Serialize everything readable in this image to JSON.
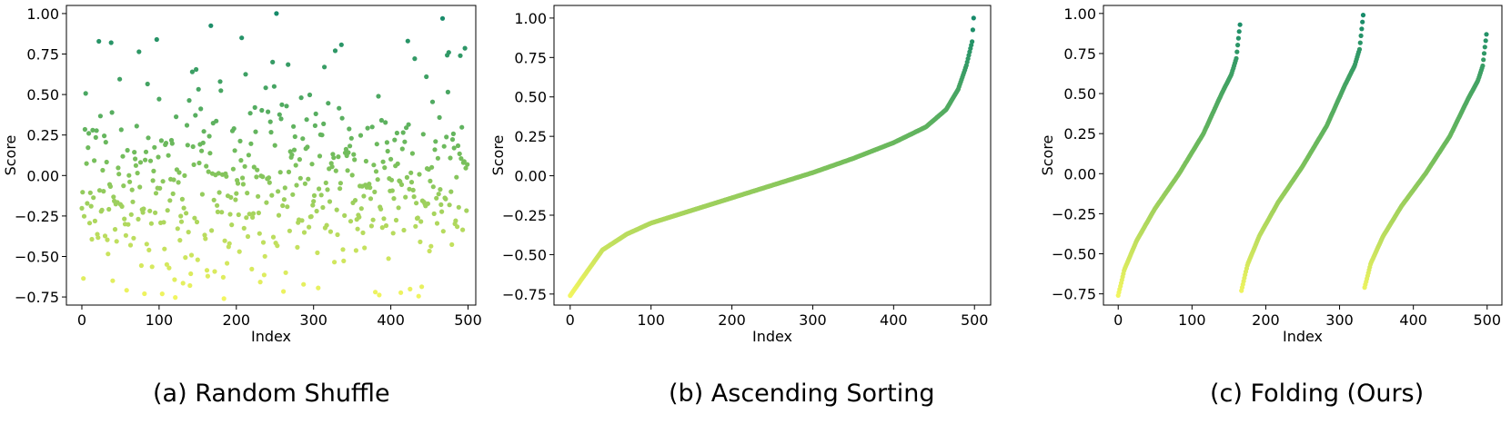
{
  "chart_data": [
    {
      "type": "scatter",
      "caption": "(a) Random Shuffle",
      "xlabel": "Index",
      "ylabel": "Score",
      "xlim": [
        -20,
        510
      ],
      "ylim": [
        -0.8,
        1.05
      ],
      "xticks": [
        0,
        100,
        200,
        300,
        400,
        500
      ],
      "xtick_labels": [
        "0",
        "100",
        "200",
        "300",
        "400",
        "500"
      ],
      "yticks": [
        -0.75,
        -0.5,
        -0.25,
        0.0,
        0.25,
        0.5,
        0.75,
        1.0
      ],
      "ytick_labels": [
        "−0.75",
        "−0.50",
        "−0.25",
        "0.00",
        "0.25",
        "0.50",
        "0.75",
        "1.00"
      ],
      "colormap": {
        "low": "#f2f55f",
        "mid": "#73bd5c",
        "high": "#168a6a"
      },
      "grid": false,
      "pattern": "500 points, x = 0..499, y values shuffled with no trend (same value distribution as panel b)",
      "x_count": 500,
      "visible_outliers": [
        {
          "x": 38,
          "y": 0.82
        },
        {
          "x": 97,
          "y": 0.84
        },
        {
          "x": 467,
          "y": 0.97
        },
        {
          "x": 422,
          "y": 0.83
        },
        {
          "x": 328,
          "y": 0.77
        },
        {
          "x": 475,
          "y": 0.76
        },
        {
          "x": 490,
          "y": 0.74
        },
        {
          "x": 81,
          "y": -0.73
        },
        {
          "x": 380,
          "y": -0.72
        }
      ]
    },
    {
      "type": "scatter",
      "caption": "(b) Ascending Sorting",
      "xlabel": "Index",
      "ylabel": "Score",
      "xlim": [
        -20,
        520
      ],
      "ylim": [
        -0.82,
        1.08
      ],
      "xticks": [
        0,
        100,
        200,
        300,
        400,
        500
      ],
      "xtick_labels": [
        "0",
        "100",
        "200",
        "300",
        "400",
        "500"
      ],
      "yticks": [
        -0.75,
        -0.5,
        -0.25,
        0.0,
        0.25,
        0.5,
        0.75,
        1.0
      ],
      "ytick_labels": [
        "−0.75",
        "−0.50",
        "−0.25",
        "0.00",
        "0.25",
        "0.50",
        "0.75",
        "1.00"
      ],
      "colormap": {
        "low": "#f2f55f",
        "mid": "#73bd5c",
        "high": "#168a6a"
      },
      "grid": false,
      "sorted_curve_anchors": {
        "x": [
          0,
          15,
          40,
          70,
          100,
          150,
          200,
          250,
          300,
          350,
          400,
          440,
          465,
          480,
          490,
          497,
          499
        ],
        "y": [
          -0.76,
          -0.65,
          -0.47,
          -0.37,
          -0.3,
          -0.22,
          -0.14,
          -0.06,
          0.02,
          0.11,
          0.21,
          0.31,
          0.42,
          0.55,
          0.7,
          0.85,
          1.0
        ]
      }
    },
    {
      "type": "scatter",
      "caption": "(c) Folding (Ours)",
      "xlabel": "Index",
      "ylabel": "Score",
      "xlim": [
        -20,
        520
      ],
      "ylim": [
        -0.82,
        1.05
      ],
      "xticks": [
        0,
        100,
        200,
        300,
        400,
        500
      ],
      "xtick_labels": [
        "0",
        "100",
        "200",
        "300",
        "400",
        "500"
      ],
      "yticks": [
        -0.75,
        -0.5,
        -0.25,
        0.0,
        0.25,
        0.5,
        0.75,
        1.0
      ],
      "ytick_labels": [
        "−0.75",
        "−0.50",
        "−0.25",
        "0.00",
        "0.25",
        "0.50",
        "0.75",
        "1.00"
      ],
      "colormap": {
        "low": "#f2f55f",
        "mid": "#73bd5c",
        "high": "#168a6a"
      },
      "grid": false,
      "folds": [
        {
          "x_start": 0,
          "x_end": 165,
          "y_start": -0.76,
          "y_end": 0.93
        },
        {
          "x_start": 167,
          "x_end": 332,
          "y_start": -0.73,
          "y_end": 0.99
        },
        {
          "x_start": 334,
          "x_end": 499,
          "y_start": -0.71,
          "y_end": 0.87
        }
      ],
      "fold_curve_shape": {
        "t": [
          0,
          0.05,
          0.15,
          0.3,
          0.5,
          0.7,
          0.85,
          0.93,
          0.97,
          1.0
        ],
        "y": [
          -0.76,
          -0.6,
          -0.42,
          -0.22,
          0.0,
          0.25,
          0.5,
          0.62,
          0.72,
          0.93
        ]
      }
    }
  ]
}
